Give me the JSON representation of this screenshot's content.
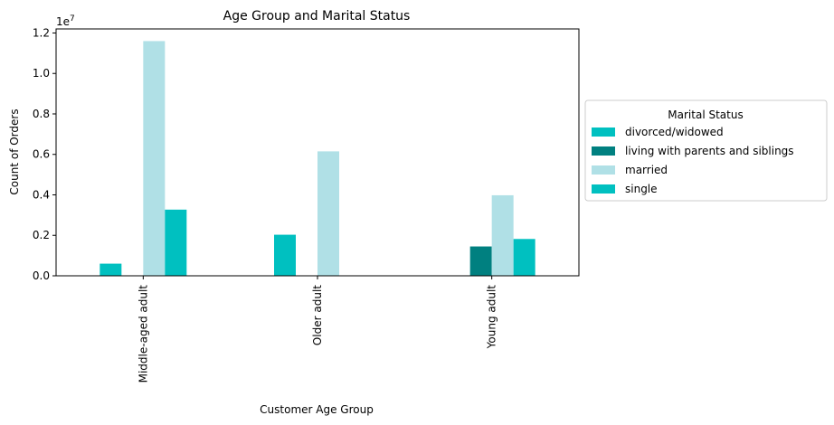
{
  "chart_data": {
    "type": "bar",
    "title": "Age Group and Marital Status",
    "xlabel": "Customer Age Group",
    "ylabel": "Count of Orders",
    "y_offset_label": "1e7",
    "y_scale": 10000000,
    "ylim": [
      0,
      12200000
    ],
    "yticks": [
      0,
      2000000,
      4000000,
      6000000,
      8000000,
      10000000,
      12000000
    ],
    "ytick_labels": [
      "0.0",
      "0.2",
      "0.4",
      "0.6",
      "0.8",
      "1.0",
      "1.2"
    ],
    "categories": [
      "Middle-aged adult",
      "Older adult",
      "Young adult"
    ],
    "legend": {
      "title": "Marital Status",
      "placement": "center-right outside"
    },
    "grid": false,
    "series": [
      {
        "name": "divorced/widowed",
        "color": "#00c0c0",
        "values": [
          600000,
          2030000,
          0
        ]
      },
      {
        "name": "living with parents and siblings",
        "color": "#008080",
        "values": [
          0,
          0,
          1450000
        ]
      },
      {
        "name": "married",
        "color": "#b0e0e6",
        "values": [
          11600000,
          6150000,
          3980000
        ]
      },
      {
        "name": "single",
        "color": "#00c0c0",
        "values": [
          3270000,
          0,
          1820000
        ]
      }
    ]
  }
}
